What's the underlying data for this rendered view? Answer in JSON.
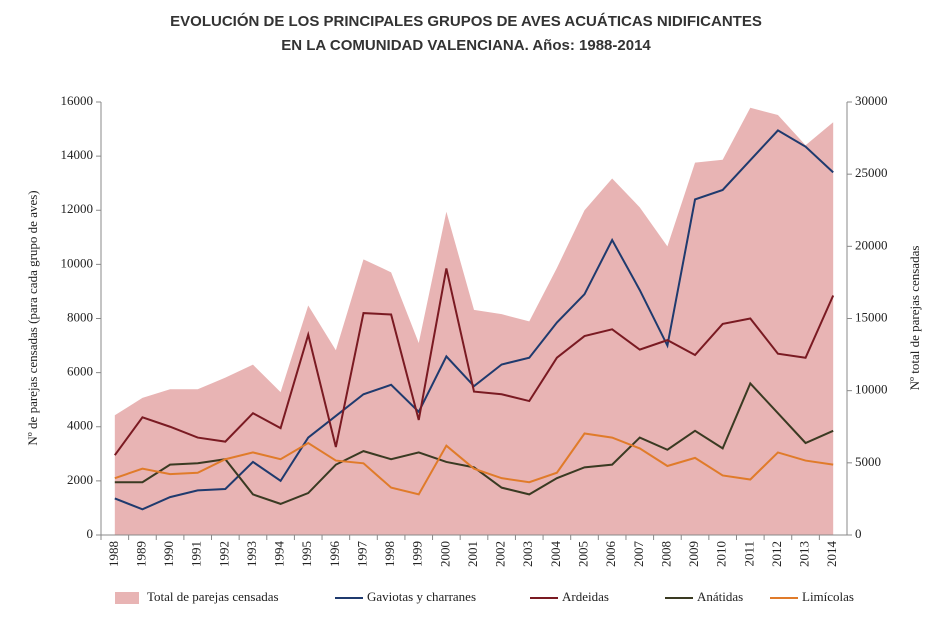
{
  "chart_data": {
    "type": "line",
    "title": [
      "EVOLUCIÓN DE LOS PRINCIPALES GRUPOS DE AVES ACUÁTICAS NIDIFICANTES",
      "EN LA COMUNIDAD VALENCIANA. Años: 1988-2014"
    ],
    "ylabel": "Nº de parejas censadas (para cada grupo de aves)",
    "y2label": "Nº total de parejas censadas",
    "categories": [
      "1988",
      "1989",
      "1990",
      "1991",
      "1992",
      "1993",
      "1994",
      "1995",
      "1996",
      "1997",
      "1998",
      "1999",
      "2000",
      "2001",
      "2002",
      "2003",
      "2004",
      "2005",
      "2006",
      "2007",
      "2008",
      "2009",
      "2010",
      "2011",
      "2012",
      "2013",
      "2014"
    ],
    "ylim": [
      0,
      16000
    ],
    "yticks": [
      0,
      2000,
      4000,
      6000,
      8000,
      10000,
      12000,
      14000,
      16000
    ],
    "y2lim": [
      0,
      30000
    ],
    "y2ticks": [
      0,
      5000,
      10000,
      15000,
      20000,
      25000,
      30000
    ],
    "series": [
      {
        "name": "Total de parejas censadas",
        "color": "#e8b4b4",
        "axis": "y2",
        "kind": "area",
        "values": [
          8300,
          9500,
          10100,
          10100,
          10900,
          11800,
          9900,
          15900,
          12800,
          19100,
          18200,
          13300,
          22400,
          15600,
          15300,
          14800,
          18500,
          22500,
          24700,
          22700,
          20000,
          25800,
          26000,
          29600,
          29100,
          27000,
          28600
        ]
      },
      {
        "name": "Gaviotas y charranes",
        "color": "#1f3a6e",
        "values": [
          1350,
          950,
          1400,
          1650,
          1700,
          2700,
          2000,
          3600,
          4400,
          5200,
          5550,
          4550,
          6600,
          5500,
          6300,
          6550,
          7850,
          8900,
          10900,
          9050,
          7000,
          12400,
          12750,
          13850,
          14950,
          14350,
          13400
        ]
      },
      {
        "name": "Ardeidas",
        "color": "#7a1a22",
        "values": [
          2950,
          4350,
          4000,
          3600,
          3450,
          4500,
          3950,
          7400,
          3250,
          8200,
          8150,
          4250,
          9850,
          5300,
          5200,
          4950,
          6550,
          7350,
          7600,
          6850,
          7200,
          6650,
          7800,
          8000,
          6700,
          6550,
          8850
        ]
      },
      {
        "name": "Anátidas",
        "color": "#3a3a22",
        "values": [
          1950,
          1950,
          2600,
          2650,
          2800,
          1500,
          1150,
          1550,
          2600,
          3100,
          2800,
          3050,
          2700,
          2500,
          1750,
          1500,
          2100,
          2500,
          2600,
          3600,
          3150,
          3850,
          3200,
          5600,
          4500,
          3400,
          3850
        ]
      },
      {
        "name": "Limícolas",
        "color": "#e07b2a",
        "values": [
          2100,
          2450,
          2250,
          2300,
          2800,
          3050,
          2800,
          3400,
          2750,
          2650,
          1750,
          1500,
          3300,
          2450,
          2100,
          1950,
          2300,
          3750,
          3600,
          3200,
          2550,
          2850,
          2200,
          2050,
          3050,
          2750,
          2600
        ]
      }
    ]
  }
}
